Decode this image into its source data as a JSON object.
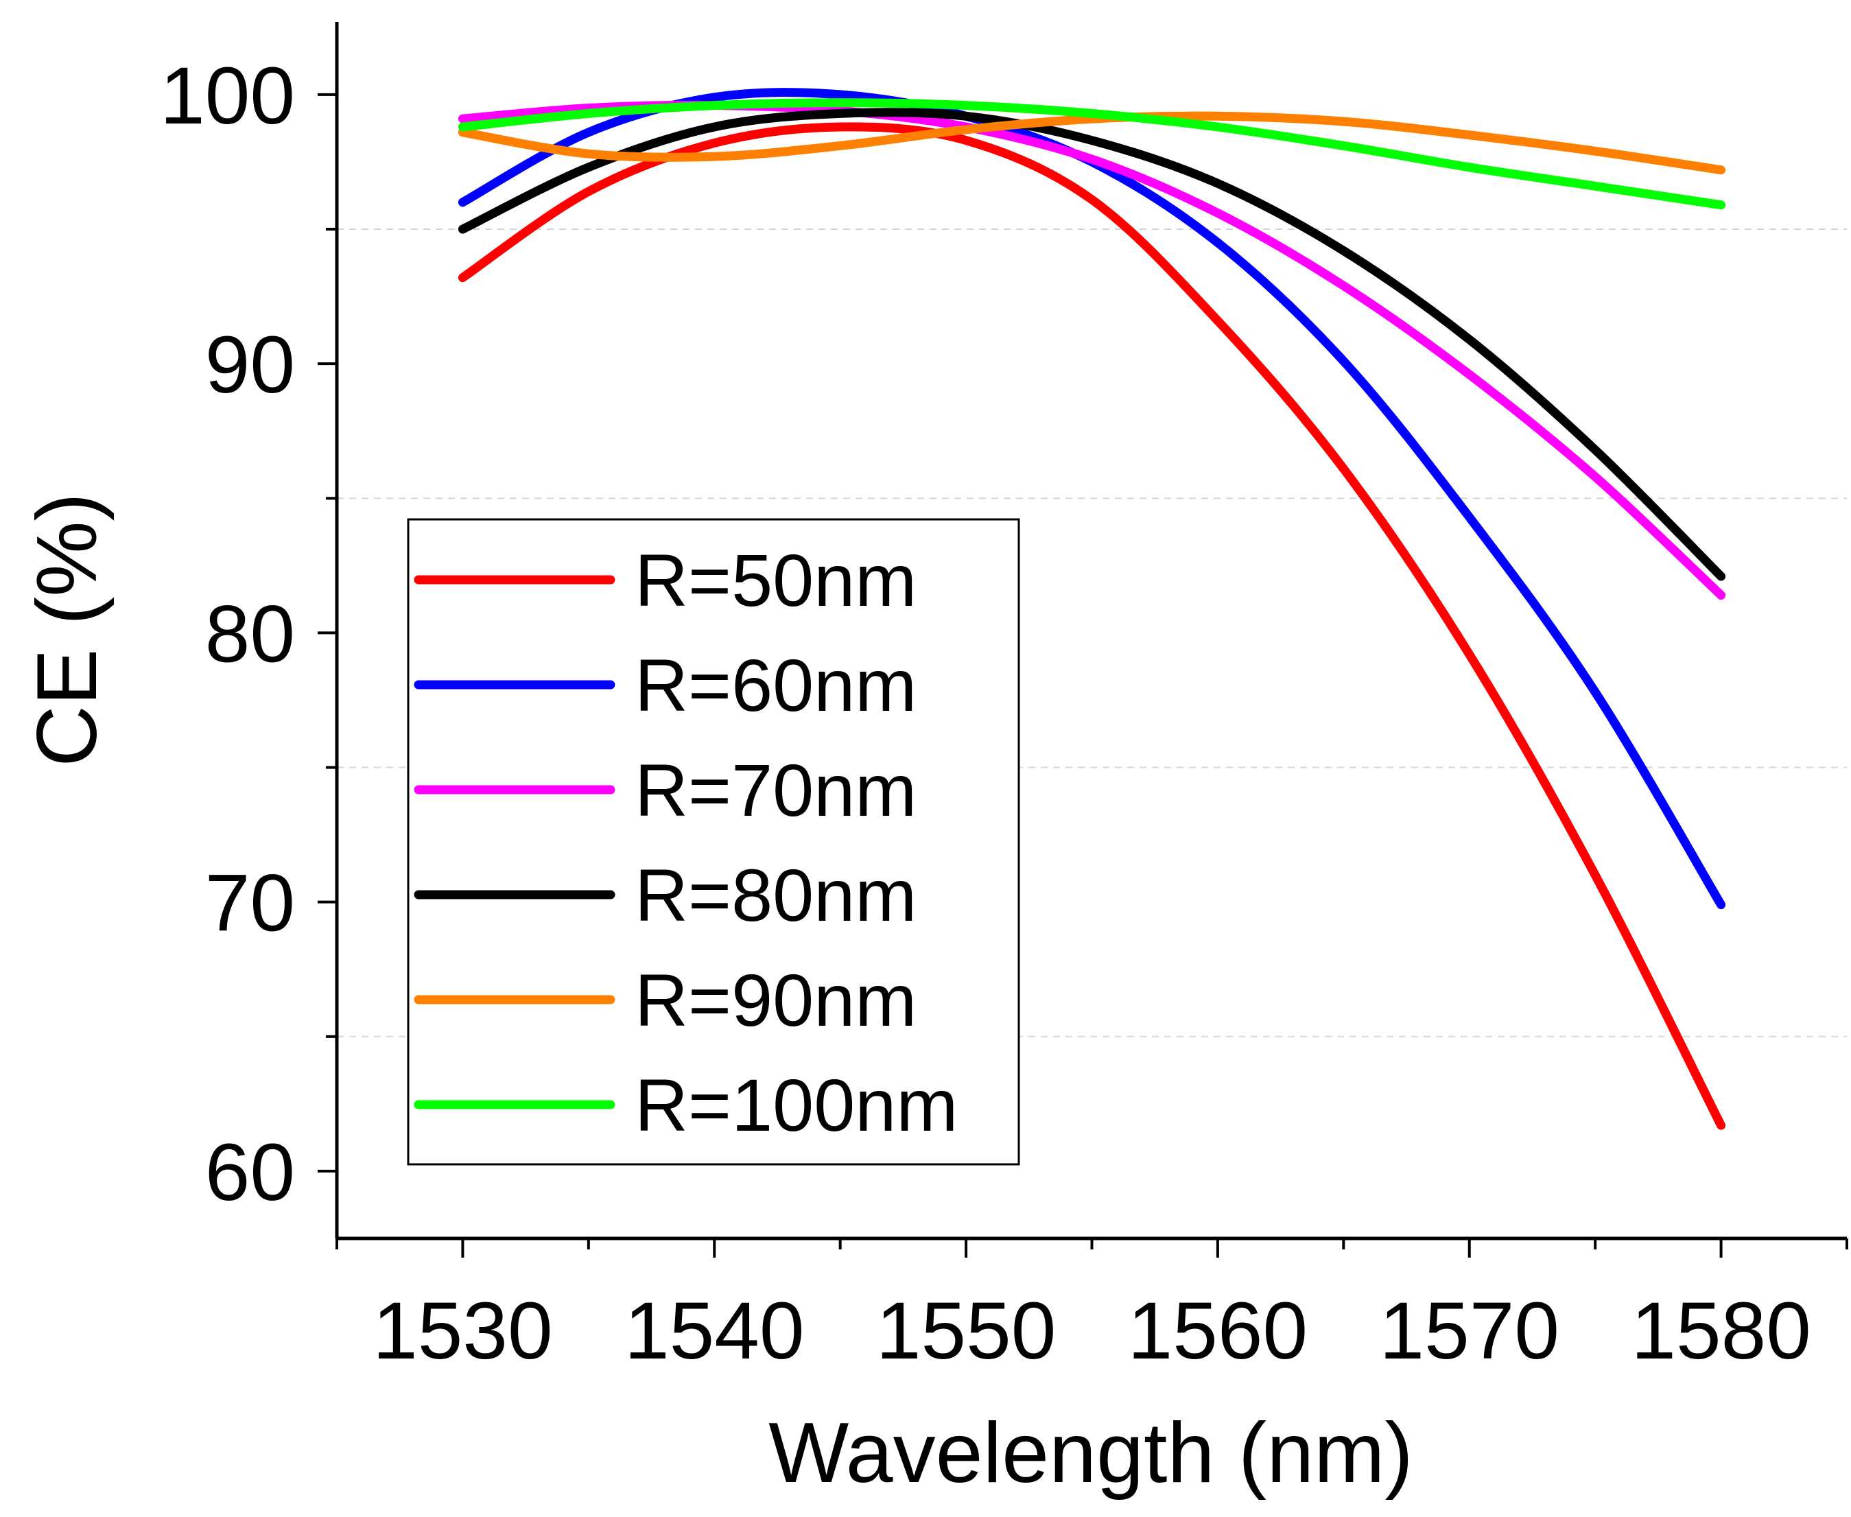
{
  "chart_data": {
    "type": "line",
    "title": "",
    "xlabel": "Wavelength (nm)",
    "ylabel": "CE (%)",
    "xlim": [
      1525,
      1585
    ],
    "ylim": [
      57.5,
      102.7
    ],
    "xticks": [
      1530,
      1540,
      1550,
      1560,
      1570,
      1580
    ],
    "xtick_labels": [
      "1530",
      "1540",
      "1550",
      "1560",
      "1570",
      "1580"
    ],
    "yticks": [
      60,
      70,
      80,
      90,
      100
    ],
    "ytick_labels": [
      "60",
      "70",
      "80",
      "90",
      "100"
    ],
    "grid": "dashed horizontal minor lines at 65, 75, 85, 95",
    "legend_position": "lower-left",
    "x": [
      1530,
      1535,
      1540,
      1545,
      1550,
      1555,
      1560,
      1565,
      1570,
      1575,
      1580
    ],
    "series": [
      {
        "name": "R=50nm",
        "color": "#ff0000",
        "values": [
          93.2,
          96.4,
          98.2,
          98.8,
          98.3,
          96.1,
          91.6,
          86.1,
          79.2,
          71.0,
          61.7
        ]
      },
      {
        "name": "R=60nm",
        "color": "#0000ff",
        "values": [
          96.0,
          98.6,
          99.9,
          100.0,
          99.2,
          97.5,
          94.5,
          90.1,
          84.3,
          77.8,
          69.9
        ]
      },
      {
        "name": "R=70nm",
        "color": "#ff00ff",
        "values": [
          99.1,
          99.5,
          99.6,
          99.4,
          98.8,
          97.6,
          95.6,
          92.9,
          89.6,
          85.8,
          81.4
        ]
      },
      {
        "name": "R=80nm",
        "color": "#000000",
        "values": [
          95.0,
          97.3,
          98.8,
          99.3,
          99.2,
          98.3,
          96.7,
          94.2,
          90.9,
          86.8,
          82.1
        ]
      },
      {
        "name": "R=90nm",
        "color": "#ff8000",
        "values": [
          98.6,
          97.8,
          97.7,
          98.1,
          98.7,
          99.1,
          99.2,
          99.0,
          98.5,
          97.9,
          97.2
        ]
      },
      {
        "name": "R=100nm",
        "color": "#00ff00",
        "values": [
          98.8,
          99.3,
          99.6,
          99.7,
          99.6,
          99.3,
          98.8,
          98.1,
          97.3,
          96.6,
          95.9
        ]
      }
    ]
  }
}
